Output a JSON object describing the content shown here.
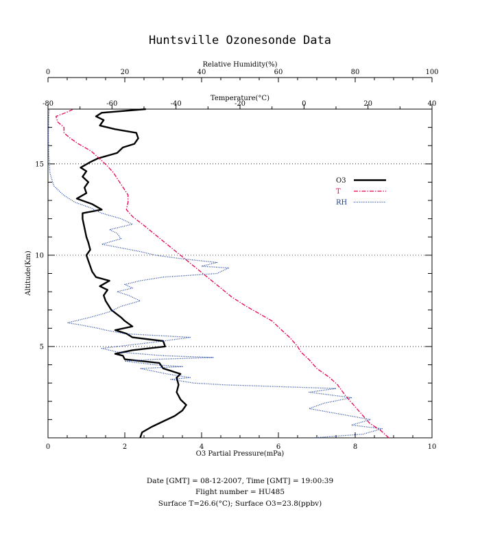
{
  "chart_data": {
    "type": "line",
    "title": "Huntsville Ozonesonde Data",
    "ylabel": "Altitude(Km)",
    "ylim": [
      0,
      18
    ],
    "yticks": [
      5,
      10,
      15
    ],
    "grid_y": [
      5,
      10,
      15
    ],
    "axes": {
      "rh": {
        "label": "Relative Humidity(%)",
        "range": [
          0,
          100
        ],
        "ticks": [
          0,
          20,
          40,
          60,
          80,
          100
        ],
        "position": "top"
      },
      "temp": {
        "label": "Temperature(°C)",
        "range": [
          -80,
          40
        ],
        "ticks": [
          -80,
          -60,
          -40,
          -20,
          0,
          20,
          40
        ],
        "position": "top-inner"
      },
      "o3": {
        "label": "O3 Partial Pressure(mPa)",
        "range": [
          0,
          10
        ],
        "ticks": [
          0,
          2,
          4,
          6,
          8,
          10
        ],
        "position": "bottom"
      }
    },
    "legend_position": "right",
    "series": [
      {
        "name": "O3",
        "axis": "o3",
        "color": "#000000",
        "style": "solid",
        "points": [
          [
            2.4,
            0.0
          ],
          [
            2.45,
            0.3
          ],
          [
            2.7,
            0.6
          ],
          [
            3.0,
            0.9
          ],
          [
            3.3,
            1.2
          ],
          [
            3.5,
            1.5
          ],
          [
            3.6,
            1.8
          ],
          [
            3.45,
            2.1
          ],
          [
            3.35,
            2.5
          ],
          [
            3.4,
            2.9
          ],
          [
            3.35,
            3.3
          ],
          [
            3.45,
            3.5
          ],
          [
            3.0,
            3.8
          ],
          [
            2.9,
            4.1
          ],
          [
            2.0,
            4.3
          ],
          [
            1.95,
            4.5
          ],
          [
            1.75,
            4.6
          ],
          [
            2.2,
            4.8
          ],
          [
            3.05,
            5.0
          ],
          [
            3.0,
            5.3
          ],
          [
            2.2,
            5.5
          ],
          [
            2.05,
            5.7
          ],
          [
            1.75,
            5.9
          ],
          [
            2.2,
            6.1
          ],
          [
            2.0,
            6.4
          ],
          [
            1.9,
            6.6
          ],
          [
            1.65,
            7.0
          ],
          [
            1.5,
            7.5
          ],
          [
            1.45,
            7.8
          ],
          [
            1.55,
            8.1
          ],
          [
            1.35,
            8.3
          ],
          [
            1.6,
            8.6
          ],
          [
            1.25,
            8.8
          ],
          [
            1.15,
            9.1
          ],
          [
            1.1,
            9.4
          ],
          [
            1.05,
            9.7
          ],
          [
            1.0,
            10.0
          ],
          [
            1.1,
            10.3
          ],
          [
            1.05,
            10.7
          ],
          [
            1.0,
            11.0
          ],
          [
            0.95,
            11.5
          ],
          [
            0.9,
            12.0
          ],
          [
            0.9,
            12.3
          ],
          [
            1.4,
            12.5
          ],
          [
            1.15,
            12.8
          ],
          [
            0.75,
            13.1
          ],
          [
            1.0,
            13.4
          ],
          [
            0.95,
            13.7
          ],
          [
            1.05,
            14.0
          ],
          [
            0.9,
            14.3
          ],
          [
            1.0,
            14.6
          ],
          [
            0.85,
            14.8
          ],
          [
            1.1,
            15.1
          ],
          [
            1.3,
            15.3
          ],
          [
            1.8,
            15.6
          ],
          [
            1.95,
            15.9
          ],
          [
            2.25,
            16.1
          ],
          [
            2.35,
            16.4
          ],
          [
            2.3,
            16.7
          ],
          [
            1.75,
            16.9
          ],
          [
            1.35,
            17.1
          ],
          [
            1.45,
            17.4
          ],
          [
            1.25,
            17.6
          ],
          [
            1.4,
            17.8
          ],
          [
            2.55,
            18.0
          ]
        ]
      },
      {
        "name": "T",
        "axis": "temp",
        "color": "#e8004a",
        "style": "dashdot",
        "points": [
          [
            26.5,
            0.0
          ],
          [
            24.0,
            0.4
          ],
          [
            20.5,
            0.8
          ],
          [
            18.5,
            1.2
          ],
          [
            16.0,
            1.7
          ],
          [
            13.0,
            2.3
          ],
          [
            10.5,
            2.9
          ],
          [
            8.0,
            3.3
          ],
          [
            4.0,
            3.8
          ],
          [
            1.5,
            4.3
          ],
          [
            -1.0,
            4.7
          ],
          [
            -2.0,
            5.0
          ],
          [
            -4.5,
            5.5
          ],
          [
            -7.0,
            5.9
          ],
          [
            -10.0,
            6.4
          ],
          [
            -14.0,
            6.8
          ],
          [
            -18.0,
            7.2
          ],
          [
            -22.5,
            7.7
          ],
          [
            -26.0,
            8.2
          ],
          [
            -29.5,
            8.7
          ],
          [
            -33.0,
            9.2
          ],
          [
            -36.5,
            9.7
          ],
          [
            -40.0,
            10.2
          ],
          [
            -43.5,
            10.7
          ],
          [
            -47.0,
            11.2
          ],
          [
            -50.5,
            11.7
          ],
          [
            -53.5,
            12.1
          ],
          [
            -55.5,
            12.5
          ],
          [
            -55.0,
            12.9
          ],
          [
            -55.0,
            13.3
          ],
          [
            -56.5,
            13.7
          ],
          [
            -58.0,
            14.1
          ],
          [
            -59.5,
            14.5
          ],
          [
            -61.5,
            14.9
          ],
          [
            -64.0,
            15.3
          ],
          [
            -66.5,
            15.7
          ],
          [
            -70.5,
            16.1
          ],
          [
            -73.0,
            16.4
          ],
          [
            -75.0,
            16.7
          ],
          [
            -75.0,
            17.0
          ],
          [
            -77.0,
            17.3
          ],
          [
            -77.5,
            17.6
          ],
          [
            -74.5,
            17.8
          ],
          [
            -72.0,
            18.0
          ]
        ]
      },
      {
        "name": "RH",
        "axis": "rh",
        "color": "#1a3c9c",
        "style": "dotted",
        "points": [
          [
            69.0,
            0.0
          ],
          [
            82.0,
            0.2
          ],
          [
            87.0,
            0.5
          ],
          [
            79.0,
            0.7
          ],
          [
            84.0,
            1.0
          ],
          [
            76.0,
            1.3
          ],
          [
            68.0,
            1.6
          ],
          [
            72.0,
            1.9
          ],
          [
            79.0,
            2.2
          ],
          [
            68.0,
            2.5
          ],
          [
            75.0,
            2.7
          ],
          [
            46.0,
            2.9
          ],
          [
            38.0,
            3.0
          ],
          [
            32.0,
            3.2
          ],
          [
            37.0,
            3.3
          ],
          [
            31.0,
            3.5
          ],
          [
            24.0,
            3.8
          ],
          [
            35.0,
            3.9
          ],
          [
            28.0,
            4.0
          ],
          [
            20.0,
            4.2
          ],
          [
            28.0,
            4.3
          ],
          [
            43.0,
            4.4
          ],
          [
            30.0,
            4.5
          ],
          [
            18.0,
            4.7
          ],
          [
            14.0,
            4.9
          ],
          [
            22.0,
            5.1
          ],
          [
            30.0,
            5.3
          ],
          [
            37.0,
            5.5
          ],
          [
            20.0,
            5.7
          ],
          [
            15.0,
            5.9
          ],
          [
            13.0,
            6.0
          ],
          [
            8.0,
            6.2
          ],
          [
            5.0,
            6.3
          ],
          [
            11.0,
            6.6
          ],
          [
            16.0,
            6.9
          ],
          [
            19.0,
            7.2
          ],
          [
            24.0,
            7.5
          ],
          [
            21.0,
            7.8
          ],
          [
            18.0,
            8.0
          ],
          [
            22.0,
            8.2
          ],
          [
            20.0,
            8.4
          ],
          [
            24.0,
            8.6
          ],
          [
            30.0,
            8.8
          ],
          [
            44.0,
            9.0
          ],
          [
            47.0,
            9.3
          ],
          [
            40.0,
            9.4
          ],
          [
            44.0,
            9.6
          ],
          [
            35.0,
            9.8
          ],
          [
            28.0,
            10.0
          ],
          [
            24.0,
            10.2
          ],
          [
            19.0,
            10.4
          ],
          [
            14.0,
            10.6
          ],
          [
            19.0,
            10.9
          ],
          [
            18.0,
            11.2
          ],
          [
            16.0,
            11.4
          ],
          [
            22.0,
            11.7
          ],
          [
            19.0,
            12.0
          ],
          [
            14.0,
            12.3
          ],
          [
            11.0,
            12.6
          ],
          [
            7.0,
            12.9
          ],
          [
            4.0,
            13.3
          ],
          [
            1.5,
            13.8
          ],
          [
            0.5,
            14.5
          ],
          [
            0.2,
            15.5
          ],
          [
            0.1,
            16.5
          ],
          [
            0.2,
            17.5
          ],
          [
            0.3,
            18.0
          ]
        ]
      }
    ]
  },
  "footer": {
    "line1": "Date [GMT] = 08-12-2007,  Time [GMT] = 19:00:39",
    "line2": "Flight number = HU485",
    "line3": "Surface T=26.6(°C); Surface O3=23.8(ppbv)"
  }
}
